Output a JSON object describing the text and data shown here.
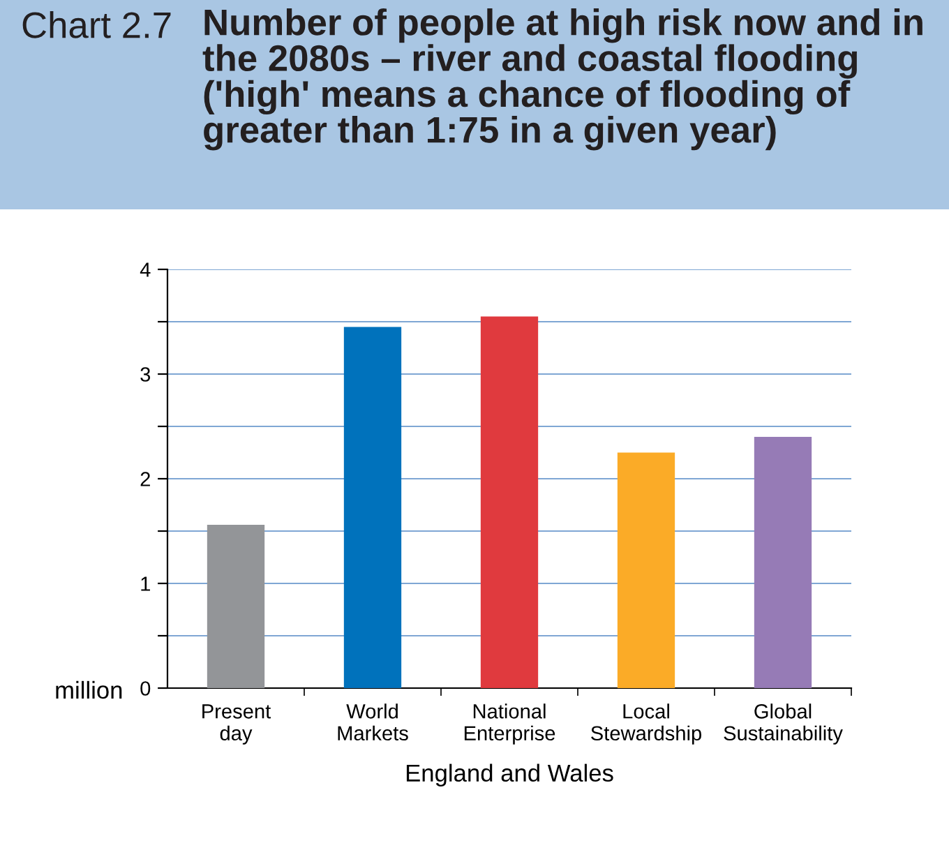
{
  "chart_data": {
    "type": "bar",
    "title": "Number of people at high risk now and in the 2080s – river and coastal flooding ('high' means a chance of flooding of greater than 1:75 in a given year)",
    "annotations": [
      "Chart 2.7"
    ],
    "categories": [
      "Present\nday",
      "World\nMarkets",
      "National\nEnterprise",
      "Local\nStewardship",
      "Global\nSustainability"
    ],
    "values": [
      1.56,
      3.45,
      3.55,
      2.25,
      2.4
    ],
    "colors": [
      "#939598",
      "#0072bc",
      "#e03a3e",
      "#fbab27",
      "#967bb6"
    ],
    "xlabel": "England and Wales",
    "ylabel": "million",
    "ylim": [
      0,
      4
    ],
    "yticks": [
      0,
      {
        "value": 0.5,
        "label": null
      },
      1,
      {
        "value": 1.5,
        "label": null
      },
      2,
      {
        "value": 2.5,
        "label": null
      },
      3,
      {
        "value": 3.5,
        "label": null
      },
      4
    ],
    "grid": "y"
  }
}
